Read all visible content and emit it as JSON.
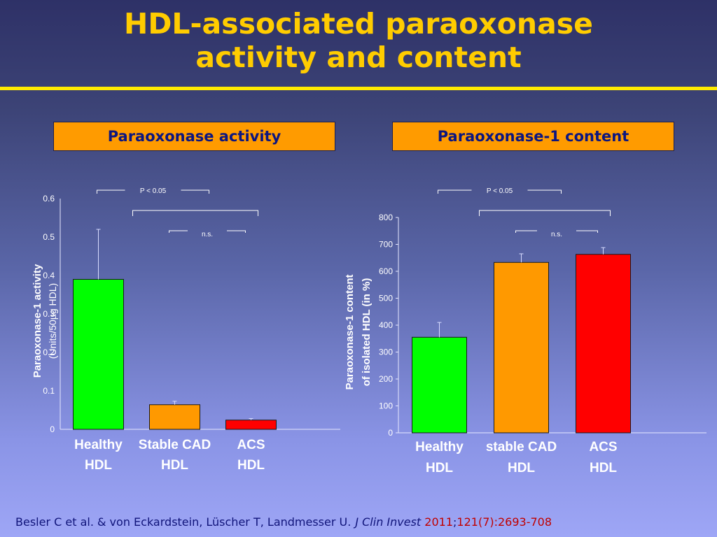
{
  "slide": {
    "title_line1": "HDL-associated paraoxonase",
    "title_line2": "activity and content",
    "panel_left_label": "Paraoxonase activity",
    "panel_right_label": "Paraoxonase-1 content",
    "citation": {
      "authors": "Besler C et al. & von Eckardstein, Lüscher T, Landmesser U.",
      "journal": "J Clin Invest",
      "year": "2011",
      "sep": ";",
      "ref": "121(7):2693-708"
    }
  },
  "colors": {
    "healthy": "#00ff00",
    "stable_cad": "#ff9900",
    "acs": "#ff0000",
    "title": "#ffcc00",
    "panel_box": "#ff9b00",
    "panel_text": "#0c1680",
    "citation": "#10147a",
    "citation_accent": "#c00000"
  },
  "chart_data": [
    {
      "type": "bar",
      "ylabel": "Paraoxonase-1 activity",
      "ylabel_units": "(Units/50µg HDL)",
      "ylim": [
        0,
        0.6
      ],
      "yticks": [
        0,
        0.1,
        0.2,
        0.3,
        0.4,
        0.5,
        0.6
      ],
      "ytick_labels": [
        "0",
        "0.1",
        "0.2",
        "0.3",
        "0.4",
        "0.5",
        "0.6"
      ],
      "categories": [
        {
          "line1": "Healthy",
          "line2": "HDL"
        },
        {
          "line1": "Stable CAD",
          "line2": "HDL"
        },
        {
          "line1": "ACS",
          "line2": "HDL"
        }
      ],
      "values": [
        0.39,
        0.064,
        0.024
      ],
      "error_upper": [
        0.52,
        0.073,
        0.028
      ],
      "bar_colors": [
        "#00ff00",
        "#ff9900",
        "#ff0000"
      ],
      "significance": [
        {
          "from": 0,
          "to": 2,
          "label": "P < 0.05"
        },
        {
          "from": 1,
          "to": 2,
          "label": "n.s."
        }
      ],
      "grid": false
    },
    {
      "type": "bar",
      "ylabel": "Paraoxonase-1 content",
      "ylabel_line2": "of isolated HDL (in %)",
      "ylim": [
        0,
        800
      ],
      "yticks": [
        0,
        100,
        200,
        300,
        400,
        500,
        600,
        700,
        800
      ],
      "ytick_labels": [
        "0",
        "100",
        "200",
        "300",
        "400",
        "500",
        "600",
        "700",
        "800"
      ],
      "categories": [
        {
          "line1": "Healthy",
          "line2": "HDL"
        },
        {
          "line1": "stable CAD",
          "line2": "HDL"
        },
        {
          "line1": "ACS",
          "line2": "HDL"
        }
      ],
      "values": [
        355,
        633,
        663
      ],
      "error_upper": [
        410,
        665,
        688
      ],
      "bar_colors": [
        "#00ff00",
        "#ff9900",
        "#ff0000"
      ],
      "significance": [
        {
          "from": 0,
          "to": 2,
          "label": "P < 0.05"
        },
        {
          "from": 1,
          "to": 2,
          "label": "n.s."
        }
      ],
      "grid": false
    }
  ]
}
